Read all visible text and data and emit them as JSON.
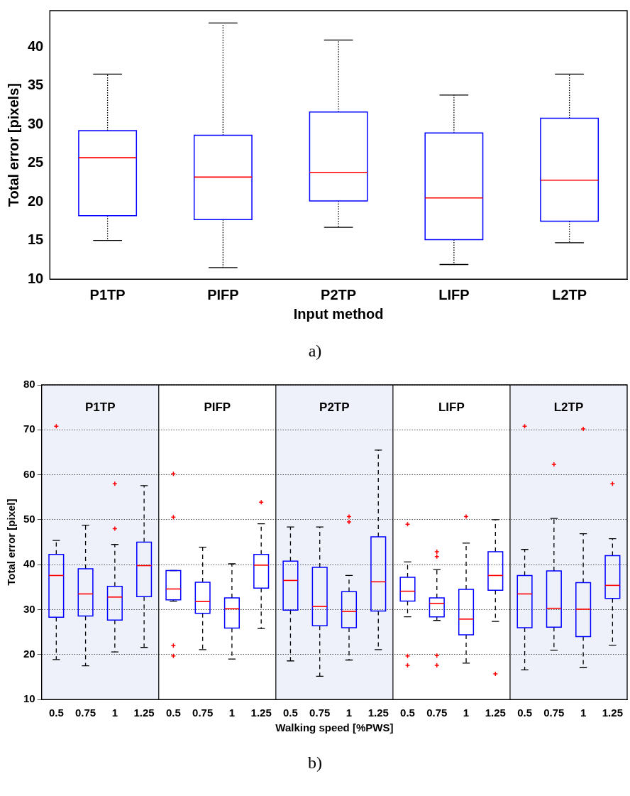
{
  "chart_data": [
    {
      "type": "box",
      "title": "a)",
      "xlabel": "Input method",
      "ylabel": "Total error [pixels]",
      "categories": [
        "P1TP",
        "PIFP",
        "P2TP",
        "LIFP",
        "L2TP"
      ],
      "ylim": [
        10,
        44.7
      ],
      "yticks": [
        10,
        15,
        20,
        25,
        30,
        35,
        40
      ],
      "grid": false,
      "legend": false,
      "line_style": "dotted",
      "series": [
        {
          "color": "#0000ff",
          "boxes": [
            {
              "low": 15.0,
              "q1": 18.2,
              "median": 25.7,
              "q3": 29.2,
              "high": 36.5
            },
            {
              "low": 11.5,
              "q1": 17.7,
              "median": 23.2,
              "q3": 28.6,
              "high": 43.1
            },
            {
              "low": 16.7,
              "q1": 20.1,
              "median": 23.8,
              "q3": 31.6,
              "high": 40.9
            },
            {
              "low": 11.9,
              "q1": 15.1,
              "median": 20.5,
              "q3": 28.9,
              "high": 33.8
            },
            {
              "low": 14.7,
              "q1": 17.5,
              "median": 22.8,
              "q3": 30.8,
              "high": 36.5
            }
          ]
        }
      ]
    },
    {
      "type": "box",
      "title": "b)",
      "xlabel": "Walking speed [%PWS]",
      "ylabel": "Total error [pixel]",
      "categories": [
        "0.5",
        "0.75",
        "1",
        "1.25",
        "0.5",
        "0.75",
        "1",
        "1.25",
        "0.5",
        "0.75",
        "1",
        "1.25",
        "0.5",
        "0.75",
        "1",
        "1.25",
        "0.5",
        "0.75",
        "1",
        "1.25"
      ],
      "ylim": [
        10,
        80
      ],
      "yticks": [
        10,
        20,
        30,
        40,
        50,
        60,
        70,
        80
      ],
      "grid": "y",
      "legend": false,
      "line_style": "dashed",
      "marker": "cross",
      "annotations": [
        "P1TP",
        "PIFP",
        "P2TP",
        "LIFP",
        "L2TP"
      ],
      "series": [
        {
          "color": "#0000ff",
          "boxes": [
            {
              "low": 18.9,
              "q1": 28.3,
              "median": 37.6,
              "q3": 42.3,
              "high": 45.4,
              "outliers": [
                70.8
              ]
            },
            {
              "low": 17.5,
              "q1": 28.6,
              "median": 33.5,
              "q3": 39.1,
              "high": 48.8
            },
            {
              "low": 20.6,
              "q1": 27.7,
              "median": 32.8,
              "q3": 35.2,
              "high": 44.5,
              "outliers": [
                58.0,
                48.0
              ]
            },
            {
              "low": 21.6,
              "q1": 32.9,
              "median": 39.8,
              "q3": 45.0,
              "high": 57.6
            },
            {
              "low": 31.9,
              "q1": 32.2,
              "median": 34.6,
              "q3": 38.7,
              "high": 38.7,
              "outliers": [
                60.2,
                50.6,
                22.0,
                19.7
              ]
            },
            {
              "low": 21.1,
              "q1": 29.2,
              "median": 31.8,
              "q3": 36.1,
              "high": 43.9
            },
            {
              "low": 19.0,
              "q1": 25.9,
              "median": 30.2,
              "q3": 32.6,
              "high": 40.2
            },
            {
              "low": 25.8,
              "q1": 34.8,
              "median": 39.9,
              "q3": 42.3,
              "high": 49.1,
              "outliers": [
                53.9
              ]
            },
            {
              "low": 18.6,
              "q1": 29.9,
              "median": 36.5,
              "q3": 40.8,
              "high": 48.4
            },
            {
              "low": 15.2,
              "q1": 26.4,
              "median": 30.7,
              "q3": 39.4,
              "high": 48.4
            },
            {
              "low": 18.8,
              "q1": 26.0,
              "median": 29.6,
              "q3": 34.0,
              "high": 37.6,
              "outliers": [
                50.7,
                49.5
              ]
            },
            {
              "low": 21.1,
              "q1": 29.7,
              "median": 36.2,
              "q3": 46.2,
              "high": 65.5
            },
            {
              "low": 28.4,
              "q1": 31.9,
              "median": 34.1,
              "q3": 37.2,
              "high": 40.6,
              "outliers": [
                49.0,
                19.7,
                17.6
              ]
            },
            {
              "low": 27.6,
              "q1": 28.4,
              "median": 31.4,
              "q3": 32.6,
              "high": 38.9,
              "outliers": [
                42.9,
                41.8,
                19.8,
                17.6
              ]
            },
            {
              "low": 18.1,
              "q1": 24.4,
              "median": 27.9,
              "q3": 34.5,
              "high": 44.8,
              "outliers": [
                50.7
              ]
            },
            {
              "low": 27.4,
              "q1": 34.3,
              "median": 37.6,
              "q3": 42.9,
              "high": 50.0,
              "outliers": [
                15.7
              ]
            },
            {
              "low": 16.6,
              "q1": 26.0,
              "median": 33.5,
              "q3": 37.6,
              "high": 43.4,
              "outliers": [
                70.8
              ]
            },
            {
              "low": 21.0,
              "q1": 26.1,
              "median": 30.3,
              "q3": 38.6,
              "high": 50.3,
              "outliers": [
                62.3
              ]
            },
            {
              "low": 17.1,
              "q1": 24.0,
              "median": 30.1,
              "q3": 36.0,
              "high": 46.9,
              "outliers": [
                70.2
              ]
            },
            {
              "low": 22.1,
              "q1": 32.5,
              "median": 35.4,
              "q3": 42.0,
              "high": 45.8,
              "outliers": [
                58.0
              ]
            }
          ]
        }
      ]
    }
  ]
}
